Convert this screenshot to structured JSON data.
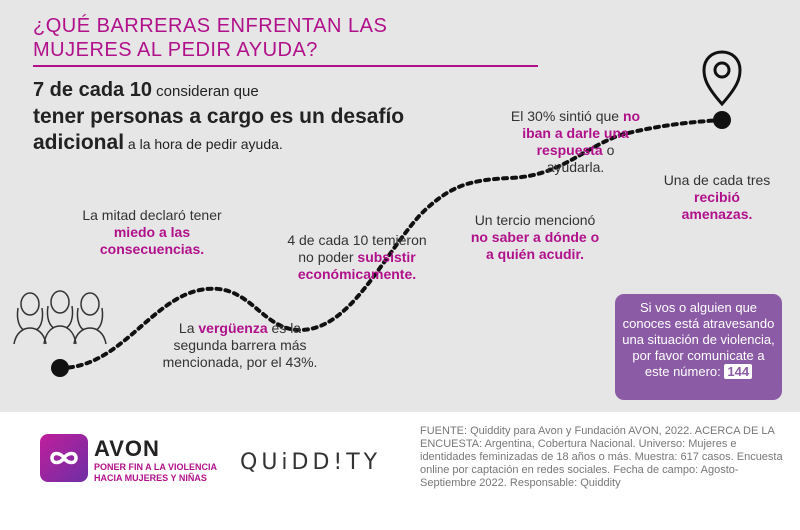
{
  "header": {
    "title_line1": "¿QUÉ BARRERAS ENFRENTAN LAS",
    "title_line2": "MUJERES AL PEDIR AYUDA?"
  },
  "intro": {
    "lead_big": "7 de cada 10",
    "lead_rest": " consideran que",
    "line2": "tener personas a cargo es un desafío",
    "line3_bold": "adicional",
    "line3_rest": " a la hora de pedir ayuda."
  },
  "stats": {
    "shame": {
      "before": "La ",
      "highlight": "vergüenza",
      "after": " es la segunda barrera más mencionada, por el 43%."
    },
    "half": {
      "text": "La mitad declaró tener ",
      "highlight": "miedo a las consecuencias."
    },
    "economic": {
      "text": "4 de cada 10 temieron no poder ",
      "highlight": "subsistir económicamente."
    },
    "third": {
      "text": "Un tercio mencionó ",
      "highlight": "no saber a dónde o a quién acudir."
    },
    "thirty": {
      "text": "El 30% sintió que ",
      "highlight": "no iban a darle una respuesta",
      "after": " o ayudarla."
    },
    "threats": {
      "text": "Una de cada tres ",
      "highlight": "recibió amenazas."
    }
  },
  "help_box": {
    "text": "Si vos o alguien que conoces está atravesando una situación de violencia, por favor comunicate a este número: ",
    "number": "144"
  },
  "footer": {
    "avon_name": "AVON",
    "avon_tag_line1": "PONER FIN A LA VIOLENCIA",
    "avon_tag_line2": "HACIA MUJERES Y NIÑAS",
    "quiddity": "QUiDD!TY",
    "source": "FUENTE: Quiddity para Avon y Fundación AVON, 2022. ACERCA DE LA ENCUESTA: Argentina, Cobertura Nacional. Universo: Mujeres e identidades feminizadas de 18 años o más. Muestra: 617 casos. Encuesta online por captación en redes sociales. Fecha de campo: Agosto-Septiembre 2022. Responsable: Quiddity"
  },
  "colors": {
    "accent": "#b1108b",
    "help_box": "#8b5ba5",
    "background": "#e6e6e6"
  },
  "icons": [
    "location-pin-icon",
    "women-group-icon",
    "avon-infinity-logo"
  ]
}
